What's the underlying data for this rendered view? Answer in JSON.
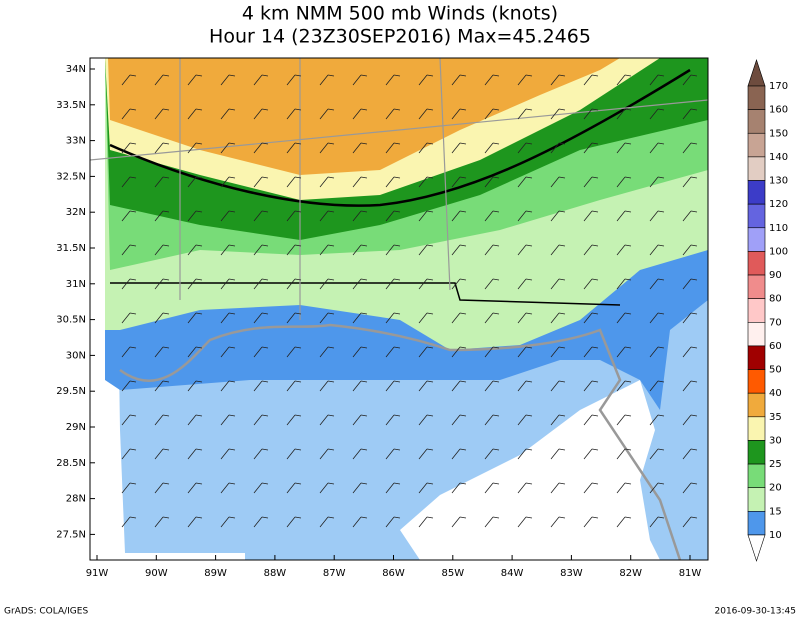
{
  "header": {
    "title": "4 km NMM 500 mb Winds (knots)",
    "subtitle": "Hour 14 (23Z30SEP2016) Max=45.2465"
  },
  "map": {
    "lat_labels": [
      "34N",
      "33.5N",
      "33N",
      "32.5N",
      "32N",
      "31.5N",
      "31N",
      "30.5N",
      "30N",
      "29.5N",
      "29N",
      "28.5N",
      "28N",
      "27.5N"
    ],
    "lon_labels": [
      "91W",
      "90W",
      "89W",
      "88W",
      "87W",
      "86W",
      "85W",
      "84W",
      "83W",
      "82W",
      "81W"
    ]
  },
  "colorbar": {
    "labels": [
      170,
      160,
      150,
      140,
      130,
      120,
      110,
      100,
      90,
      80,
      70,
      60,
      50,
      40,
      35,
      30,
      25,
      20,
      15,
      10
    ],
    "colors": [
      "#6e4c3e",
      "#8a6452",
      "#a68270",
      "#c8a494",
      "#e2cdc3",
      "#3c3cc8",
      "#6464e0",
      "#a0a0f8",
      "#e05a5a",
      "#f08c8c",
      "#ffc8c8",
      "#fff0ee",
      "#a00000",
      "#ff5a00",
      "#f0aa3c",
      "#faf5b0",
      "#1e961e",
      "#78dc78",
      "#c5f2b3",
      "#4e97eb",
      "#ffffff"
    ]
  },
  "footer": {
    "left": "GrADS: COLA/IGES",
    "right": "2016-09-30-13:45"
  }
}
